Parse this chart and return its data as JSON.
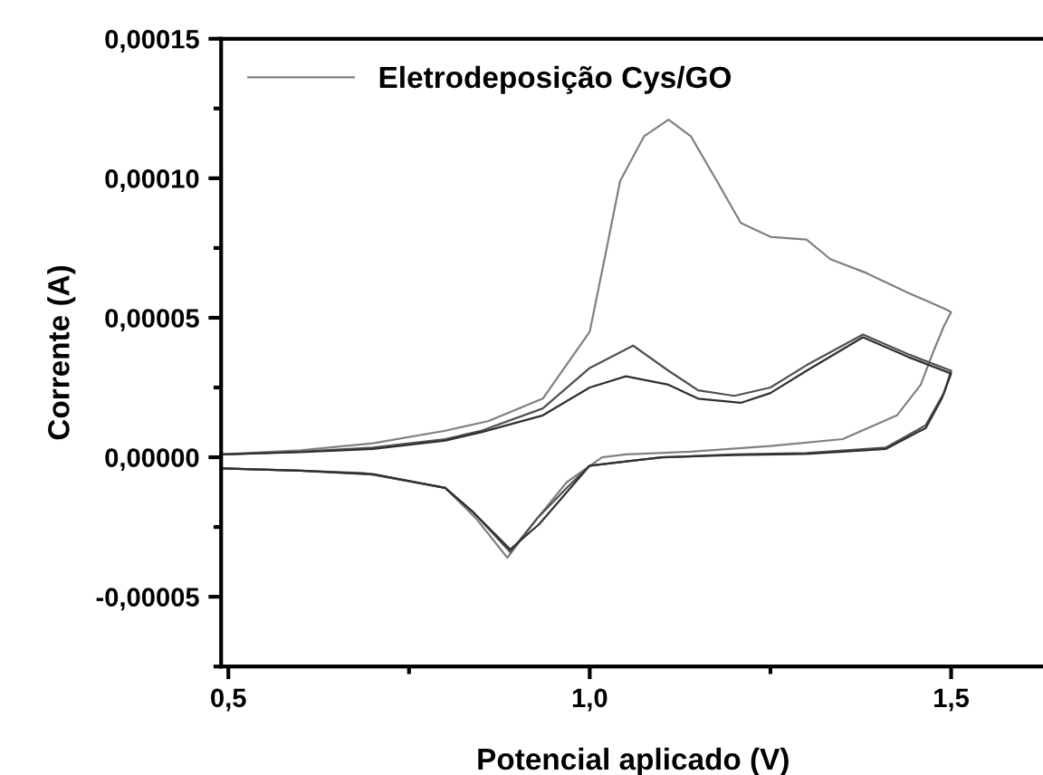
{
  "chart_data": {
    "type": "line",
    "xlabel": "Potencial aplicado (V)",
    "ylabel": "Corrente (A)",
    "xlim": [
      0.49,
      1.63
    ],
    "ylim": [
      -7.5e-05,
      0.00015
    ],
    "xticks": [
      {
        "value": 0.5,
        "label": "0,5"
      },
      {
        "value": 1.0,
        "label": "1,0"
      },
      {
        "value": 1.5,
        "label": "1,5"
      }
    ],
    "yticks": [
      {
        "value": -5e-05,
        "label": "-0,00005"
      },
      {
        "value": 0,
        "label": "0,00000"
      },
      {
        "value": 5e-05,
        "label": "0,00005"
      },
      {
        "value": 0.0001,
        "label": "0,00010"
      },
      {
        "value": 0.00015,
        "label": "0,00015"
      }
    ],
    "grid": false,
    "legend": "top left",
    "marker": "none",
    "line_style": "solid",
    "series": [
      {
        "name": "Eletrodeposição Cys/GO",
        "color": "#808080",
        "x": [
          0.49,
          0.6,
          0.7,
          0.8,
          0.86,
          0.935,
          1.0,
          1.022,
          1.042,
          1.075,
          1.109,
          1.14,
          1.176,
          1.209,
          1.25,
          1.3,
          1.333,
          1.383,
          1.44,
          1.493,
          1.5,
          1.49,
          1.474,
          1.458,
          1.425,
          1.35,
          1.25,
          1.14,
          1.05,
          1.017,
          0.968,
          0.927,
          0.886,
          0.843,
          0.8,
          0.687,
          0.6,
          0.49
        ],
        "values": [
          1e-06,
          2.5e-06,
          5e-06,
          9.5e-06,
          1.3e-05,
          2.1e-05,
          4.5e-05,
          7.3e-05,
          9.9e-05,
          0.000115,
          0.000121,
          0.000115,
          9.9e-05,
          8.4e-05,
          7.9e-05,
          7.8e-05,
          7.1e-05,
          6.6e-05,
          5.9e-05,
          5.3e-05,
          5.2e-05,
          4.7e-05,
          3.7e-05,
          2.6e-05,
          1.5e-05,
          6.5e-06,
          4e-06,
          2e-06,
          1e-06,
          0,
          -9e-06,
          -2.2e-05,
          -3.6e-05,
          -2.2e-05,
          -1.1e-05,
          -5.6e-06,
          -4.8e-06,
          -4e-06
        ]
      },
      {
        "color": "#505050",
        "x": [
          0.49,
          0.6,
          0.7,
          0.8,
          0.85,
          0.935,
          1.0,
          1.06,
          1.109,
          1.15,
          1.2,
          1.25,
          1.3,
          1.378,
          1.44,
          1.5,
          1.49,
          1.465,
          1.41,
          1.3,
          1.2,
          1.1,
          1.0,
          0.968,
          0.927,
          0.89,
          0.84,
          0.8,
          0.7,
          0.6,
          0.49
        ],
        "values": [
          1e-06,
          2e-06,
          3.5e-06,
          6.5e-06,
          9.5e-06,
          1.75e-05,
          3.2e-05,
          4e-05,
          3.1e-05,
          2.4e-05,
          2.2e-05,
          2.5e-05,
          3.3e-05,
          4.4e-05,
          3.7e-05,
          3.1e-05,
          2.3e-05,
          1.15e-05,
          3.5e-06,
          1.5e-06,
          1e-06,
          0,
          -3e-06,
          -1.1e-05,
          -2.2e-05,
          -3.4e-05,
          -2e-05,
          -1.1e-05,
          -6.2e-06,
          -4.8e-06,
          -4e-06
        ]
      },
      {
        "color": "#303030",
        "x": [
          0.49,
          0.6,
          0.7,
          0.8,
          0.85,
          0.935,
          1.0,
          1.05,
          1.109,
          1.15,
          1.209,
          1.25,
          1.3,
          1.378,
          1.44,
          1.5,
          1.487,
          1.465,
          1.41,
          1.3,
          1.2,
          1.1,
          1.0,
          0.97,
          0.93,
          0.89,
          0.84,
          0.8,
          0.7,
          0.6,
          0.49
        ],
        "values": [
          1e-06,
          1.8e-06,
          3e-06,
          6e-06,
          9e-06,
          1.5e-05,
          2.5e-05,
          2.9e-05,
          2.6e-05,
          2.1e-05,
          1.95e-05,
          2.3e-05,
          3.1e-05,
          4.3e-05,
          3.6e-05,
          3e-05,
          2.1e-05,
          1.05e-05,
          3e-06,
          1.2e-06,
          8e-07,
          0,
          -3e-06,
          -1.2e-05,
          -2.4e-05,
          -3.3e-05,
          -2e-05,
          -1.1e-05,
          -6e-06,
          -4.8e-06,
          -4e-06
        ]
      }
    ]
  }
}
